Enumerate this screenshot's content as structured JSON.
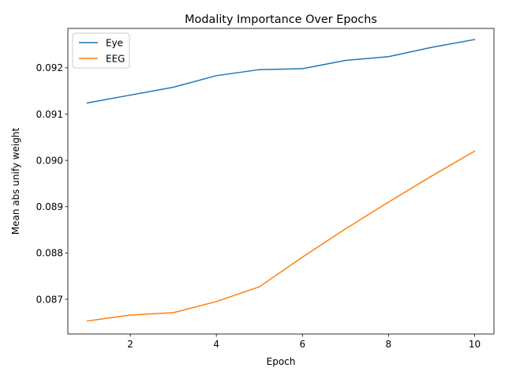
{
  "chart_data": {
    "type": "line",
    "title": "Modality Importance Over Epochs",
    "xlabel": "Epoch",
    "ylabel": "Mean abs unify weight",
    "x": [
      1,
      2,
      3,
      4,
      5,
      6,
      7,
      8,
      9,
      10
    ],
    "xlim": [
      0.55,
      10.45
    ],
    "ylim": [
      0.08625,
      0.09285
    ],
    "xticks": [
      2,
      4,
      6,
      8,
      10
    ],
    "xtick_labels": [
      "2",
      "4",
      "6",
      "8",
      "10"
    ],
    "yticks": [
      0.087,
      0.088,
      0.089,
      0.09,
      0.091,
      0.092
    ],
    "ytick_labels": [
      "0.087",
      "0.088",
      "0.089",
      "0.090",
      "0.091",
      "0.092"
    ],
    "grid": false,
    "legend_position": "top-left",
    "series": [
      {
        "name": "Eye",
        "color": "#1f77b4",
        "values": [
          0.09124,
          0.09141,
          0.09158,
          0.09183,
          0.09196,
          0.09198,
          0.09216,
          0.09224,
          0.09244,
          0.09261
        ]
      },
      {
        "name": "EEG",
        "color": "#ff7f0e",
        "values": [
          0.08653,
          0.08666,
          0.08671,
          0.08695,
          0.08727,
          0.08791,
          0.08852,
          0.0891,
          0.08966,
          0.0902
        ]
      }
    ]
  }
}
